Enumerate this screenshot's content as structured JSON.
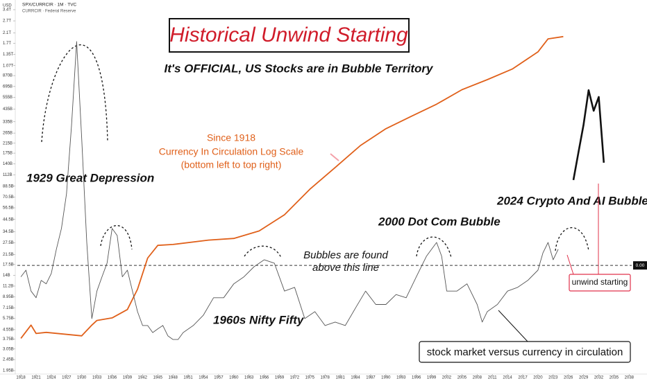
{
  "header": {
    "symbol": "SPX/CURRCIR · 1M · TVC",
    "source": "CURRCIR · Federal Reserve",
    "unit": "USD"
  },
  "chart_data": {
    "type": "line",
    "title": "Historical Unwind Starting",
    "subtitle": "It's OFFICIAL, US Stocks are in Bubble Territory",
    "annotations": [
      "Since 1918",
      "Currency In Circulation Log Scale",
      "(bottom left to top right)",
      "1929 Great Depression",
      "2024 Crypto And AI Bubble",
      "2000 Dot Com Bubble",
      "1960s Nifty Fifty",
      "Bubbles are found",
      "above this line",
      "unwind starting",
      "stock market versus currency in circulation"
    ],
    "xlim": [
      1917.3,
      2038.5
    ],
    "xticks": [
      1918,
      1921,
      1924,
      1927,
      1930,
      1933,
      1936,
      1939,
      1942,
      1945,
      1948,
      1951,
      1954,
      1957,
      1960,
      1963,
      1966,
      1969,
      1972,
      1975,
      1978,
      1981,
      1984,
      1987,
      1990,
      1993,
      1996,
      1999,
      2002,
      2005,
      2008,
      2011,
      2014,
      2017,
      2020,
      2023,
      2026,
      2029,
      2032,
      2035,
      2038
    ],
    "ylim": [
      1950000000,
      3400000000000
    ],
    "ylog": true,
    "yticks": [
      {
        "value": 3400000000000,
        "label": "3.4T"
      },
      {
        "value": 2700000000000,
        "label": "2.7T"
      },
      {
        "value": 2100000000000,
        "label": "2.1T"
      },
      {
        "value": 1700000000000,
        "label": "1.7T"
      },
      {
        "value": 1350000000000,
        "label": "1.35T"
      },
      {
        "value": 1070000000000,
        "label": "1.07T"
      },
      {
        "value": 870000000000,
        "label": "870B"
      },
      {
        "value": 695000000000,
        "label": "695B"
      },
      {
        "value": 555000000000,
        "label": "555B"
      },
      {
        "value": 435000000000,
        "label": "435B"
      },
      {
        "value": 335000000000,
        "label": "335B"
      },
      {
        "value": 265000000000,
        "label": "265B"
      },
      {
        "value": 215000000000,
        "label": "215B"
      },
      {
        "value": 175000000000,
        "label": "175B"
      },
      {
        "value": 140000000000,
        "label": "140B"
      },
      {
        "value": 112000000000,
        "label": "112B"
      },
      {
        "value": 88500000000,
        "label": "88.5B"
      },
      {
        "value": 70500000000,
        "label": "70.5B"
      },
      {
        "value": 56500000000,
        "label": "56.5B"
      },
      {
        "value": 44500000000,
        "label": "44.5B"
      },
      {
        "value": 34500000000,
        "label": "34.5B"
      },
      {
        "value": 27500000000,
        "label": "27.5B"
      },
      {
        "value": 21500000000,
        "label": "21.5B"
      },
      {
        "value": 17500000000,
        "label": "17.5B"
      },
      {
        "value": 14000000000,
        "label": "14B"
      },
      {
        "value": 11200000000,
        "label": "11.2B"
      },
      {
        "value": 8950000000,
        "label": "8.95B"
      },
      {
        "value": 7150000000,
        "label": "7.15B"
      },
      {
        "value": 5750000000,
        "label": "5.75B"
      },
      {
        "value": 4550000000,
        "label": "4.55B"
      },
      {
        "value": 3750000000,
        "label": "3.75B"
      },
      {
        "value": 3050000000,
        "label": "3.05B"
      },
      {
        "value": 2450000000,
        "label": "2.45B"
      },
      {
        "value": 1950000000,
        "label": "1.95B"
      }
    ],
    "y2lim": [
      0.0004,
      0.1
    ],
    "y2log": true,
    "y2ticks": [
      {
        "value": 0.002,
        "label": "0.00"
      }
    ],
    "series": [
      {
        "color": "#e0601a",
        "axis": "y",
        "x": [
          1918,
          1920,
          1921,
          1923,
          1930,
          1932,
          1933,
          1936,
          1939,
          1941,
          1943,
          1945,
          1948,
          1955,
          1960,
          1965,
          1970,
          1975,
          1980,
          1985,
          1990,
          1995,
          2000,
          2005,
          2010,
          2015,
          2020,
          2022,
          2025
        ],
        "values": [
          3800000000,
          5000000000,
          4200000000,
          4300000000,
          4000000000,
          5000000000,
          5500000000,
          5800000000,
          6900000000,
          10500000000,
          20000000000,
          26000000000,
          26500000000,
          29000000000,
          30000000000,
          35000000000,
          49000000000,
          83000000000,
          130000000000,
          205000000000,
          290000000000,
          375000000000,
          482000000000,
          650000000000,
          800000000000,
          1000000000000,
          1420000000000,
          1860000000000,
          1950000000000
        ]
      },
      {
        "color": "#555555",
        "axis": "y2",
        "x": [
          1918,
          1919,
          1920,
          1921,
          1922,
          1923,
          1924,
          1925,
          1926,
          1927,
          1928,
          1929,
          1930,
          1931,
          1932,
          1933,
          1934,
          1935,
          1936,
          1937,
          1938,
          1939,
          1940,
          1941,
          1942,
          1943,
          1944,
          1945,
          1946,
          1947,
          1948,
          1949,
          1950,
          1952,
          1954,
          1956,
          1958,
          1960,
          1962,
          1964,
          1966,
          1968,
          1970,
          1972,
          1974,
          1976,
          1978,
          1980,
          1982,
          1984,
          1986,
          1988,
          1990,
          1992,
          1994,
          1996,
          1998,
          2000,
          2001,
          2002,
          2004,
          2006,
          2008,
          2009,
          2010,
          2012,
          2014,
          2016,
          2018,
          2020,
          2021,
          2022,
          2023,
          2024
        ],
        "values": [
          0.00168,
          0.00186,
          0.00135,
          0.00122,
          0.00159,
          0.00151,
          0.00177,
          0.00256,
          0.00352,
          0.00598,
          0.0172,
          0.0614,
          0.0139,
          0.00284,
          0.000887,
          0.00135,
          0.00168,
          0.00207,
          0.00352,
          0.00316,
          0.00168,
          0.00186,
          0.00135,
          0.000986,
          0.000797,
          0.000797,
          0.000716,
          0.000757,
          0.000797,
          0.00068,
          0.000644,
          0.000644,
          0.000716,
          0.000797,
          0.000935,
          0.00122,
          0.00122,
          0.00151,
          0.00168,
          0.00196,
          0.00218,
          0.00207,
          0.00135,
          0.00143,
          0.000887,
          0.000986,
          0.000797,
          0.000841,
          0.000797,
          0.00104,
          0.00135,
          0.0011,
          0.0011,
          0.00128,
          0.00122,
          0.00168,
          0.0023,
          0.00284,
          0.0023,
          0.00135,
          0.00135,
          0.00151,
          0.0011,
          0.000841,
          0.000986,
          0.0011,
          0.00135,
          0.00143,
          0.00159,
          0.00186,
          0.00243,
          0.00284,
          0.00218,
          0.00256
        ]
      },
      {
        "color": "#111111",
        "axis": "y2",
        "x": [
          2027,
          2028,
          2029,
          2030,
          2031,
          2032,
          2033
        ],
        "values": [
          0.00738,
          0.0113,
          0.0172,
          0.0292,
          0.0213,
          0.0263,
          0.00962
        ]
      }
    ]
  }
}
